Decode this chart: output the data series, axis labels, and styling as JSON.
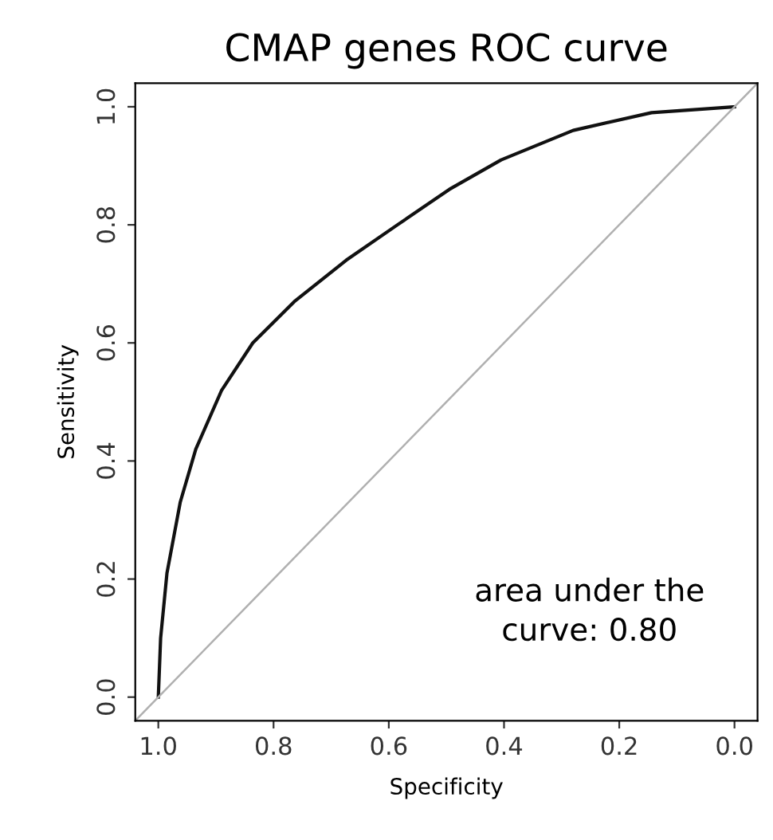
{
  "chart_data": {
    "type": "line",
    "title": "CMAP genes ROC curve",
    "xlabel": "Specificity",
    "ylabel": "Sensitivity",
    "xlim": [
      1.04,
      -0.04
    ],
    "ylim": [
      -0.04,
      1.04
    ],
    "xticks": [
      {
        "value": 1.0,
        "label": "1.0"
      },
      0.8,
      0.6,
      0.4,
      0.2,
      {
        "value": 0.0,
        "label": "0.0"
      }
    ],
    "yticks": [
      {
        "value": 0.0,
        "label": "0.0"
      },
      0.2,
      0.4,
      0.6,
      0.8,
      {
        "value": 1.0,
        "label": "1.0"
      }
    ],
    "grid": false,
    "marker": "none",
    "line_style": "solid",
    "series": [
      {
        "color": "#111111",
        "x": [
          1.0,
          0.996,
          0.985,
          0.962,
          0.935,
          0.89,
          0.836,
          0.764,
          0.674,
          0.585,
          0.495,
          0.405,
          0.28,
          0.144,
          0.0
        ],
        "values": [
          0.0,
          0.1,
          0.21,
          0.33,
          0.42,
          0.52,
          0.6,
          0.67,
          0.74,
          0.8,
          0.86,
          0.91,
          0.96,
          0.99,
          1.0
        ]
      },
      {
        "color": "#b0b0b0",
        "x": [
          1.04,
          -0.04
        ],
        "values": [
          -0.04,
          1.04
        ]
      }
    ],
    "annotations": [
      "area under the\ncurve: 0.80"
    ]
  }
}
